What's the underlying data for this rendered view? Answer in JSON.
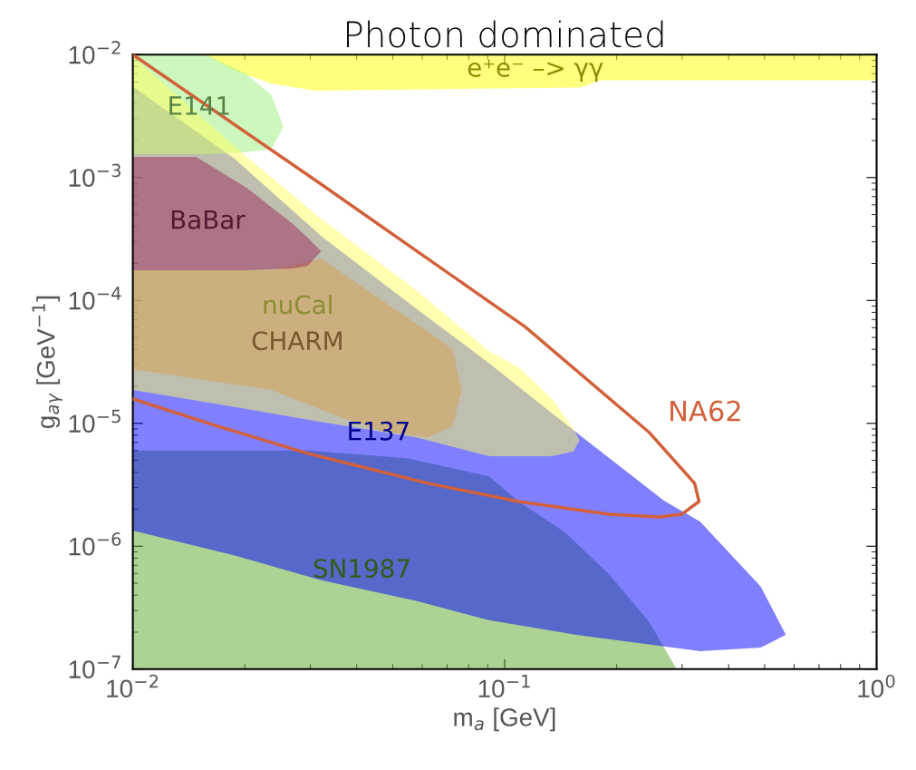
{
  "chart_data": {
    "type": "area",
    "title": "Photon dominated",
    "xlabel": "m$_{a}$ [GeV]",
    "ylabel": "g$_{aγ}$ [GeV$^{−1}$]",
    "log": "xy",
    "grid": false,
    "xlim": [
      0.01,
      1
    ],
    "ylim": [
      1e-07,
      0.01
    ],
    "xticks": [
      {
        "value": 0.01,
        "label": "10$^{−2}$"
      },
      {
        "value": 0.1,
        "label": "10$^{−1}$"
      },
      {
        "value": 1,
        "label": "10$^{0}$"
      }
    ],
    "yticks": [
      {
        "value": 1e-07,
        "label": "10$^{−7}$"
      },
      {
        "value": 1e-06,
        "label": "10$^{−6}$"
      },
      {
        "value": 1e-05,
        "label": "10$^{−5}$"
      },
      {
        "value": 0.0001,
        "label": "10$^{−4}$"
      },
      {
        "value": 0.001,
        "label": "10$^{−3}$"
      },
      {
        "value": 0.01,
        "label": "10$^{−2}$"
      }
    ],
    "series": [
      {
        "name": "SN1987",
        "color": "#5aa62a",
        "x": [
          0.01,
          0.0295,
          0.0547,
          0.0906,
          0.109,
          0.145,
          0.191,
          0.245,
          0.29,
          0.01
        ],
        "values": [
          6e-06,
          6e-06,
          5.2e-06,
          3.7e-06,
          2.31e-06,
          1.3e-06,
          5.9e-07,
          2.4e-07,
          1e-07,
          1e-07
        ]
      },
      {
        "name": "E137",
        "color": "#0000ff",
        "x": [
          0.01,
          0.0188,
          0.0321,
          0.0578,
          0.0906,
          0.156,
          0.268,
          0.335,
          0.488,
          0.57,
          0.488,
          0.335,
          0.268,
          0.156,
          0.0906,
          0.0578,
          0.0321,
          0.0188,
          0.01
        ],
        "values": [
          0.0055,
          0.00142,
          0.000335,
          8.6e-05,
          3.1e-05,
          8.4e-06,
          2.35e-06,
          1.59e-06,
          4.7e-07,
          1.9e-07,
          1.5e-07,
          1.4e-07,
          1.53e-07,
          1.9e-07,
          2.5e-07,
          3.6e-07,
          5.3e-07,
          8.4e-07,
          1.34e-06
        ]
      },
      {
        "name": "e⁺e⁻ –> γγ",
        "color": "#ffff00",
        "x": [
          0.0157,
          1,
          1,
          0.18,
          0.16,
          0.031,
          0.0236,
          0.0188
        ],
        "values": [
          0.01,
          0.01,
          0.0062,
          0.0062,
          0.0054,
          0.0051,
          0.0058,
          0.0074
        ]
      },
      {
        "name": "E141",
        "color": "#9cf07c",
        "x": [
          0.01,
          0.0157,
          0.02,
          0.0236,
          0.0254,
          0.0236,
          0.02,
          0.0157,
          0.01
        ],
        "values": [
          0.01,
          0.01,
          0.0071,
          0.0047,
          0.0026,
          0.0017,
          0.0016,
          0.00155,
          0.00155
        ]
      },
      {
        "name": "nuCal",
        "color": "#ffff60",
        "x": [
          0.01,
          0.0196,
          0.0318,
          0.0578,
          0.0906,
          0.109,
          0.134,
          0.153,
          0.159,
          0.153,
          0.134,
          0.109,
          0.0906,
          0.0578,
          0.0318,
          0.0196,
          0.01
        ],
        "values": [
          0.0097,
          0.0016,
          0.000471,
          0.000121,
          3.88e-05,
          2.86e-05,
          1.58e-05,
          9e-06,
          7.3e-06,
          5.9e-06,
          5.4e-06,
          5.4e-06,
          5.4e-06,
          7.7e-06,
          1.03e-05,
          1.33e-05,
          1.87e-05
        ]
      },
      {
        "name": "CHARM",
        "color": "#d8a050",
        "x": [
          0.01,
          0.0236,
          0.0321,
          0.0463,
          0.0622,
          0.0724,
          0.0766,
          0.0724,
          0.0622,
          0.0463,
          0.0321,
          0.0236,
          0.01
        ],
        "values": [
          0.000176,
          0.000176,
          0.000219,
          0.000102,
          5.6e-05,
          4e-05,
          1.87e-05,
          9.5e-06,
          7.7e-06,
          8.7e-06,
          1.29e-05,
          1.87e-05,
          2.76e-05
        ]
      },
      {
        "name": "BaBar",
        "color": "#9a2a5a",
        "x": [
          0.01,
          0.0148,
          0.0203,
          0.0269,
          0.0295,
          0.0321,
          0.0295,
          0.0269,
          0.0203,
          0.0148,
          0.01
        ],
        "values": [
          0.00147,
          0.00147,
          0.00082,
          0.00042,
          0.000324,
          0.000251,
          0.000191,
          0.000182,
          0.000176,
          0.000176,
          0.000176
        ]
      },
      {
        "name": "NA62",
        "type": "line",
        "color": "#d2603a",
        "x": [
          0.01,
          0.0313,
          0.1135,
          0.245,
          0.324,
          0.333,
          0.299,
          0.259,
          0.191,
          0.109,
          0.0622,
          0.0295,
          0.0169,
          0.01
        ],
        "values": [
          0.01,
          0.00093,
          6.1e-05,
          8.4e-06,
          3.25e-06,
          2.31e-06,
          1.82e-06,
          1.73e-06,
          1.82e-06,
          2.31e-06,
          3.25e-06,
          5.7e-06,
          9.5e-06,
          1.58e-05
        ]
      }
    ]
  }
}
